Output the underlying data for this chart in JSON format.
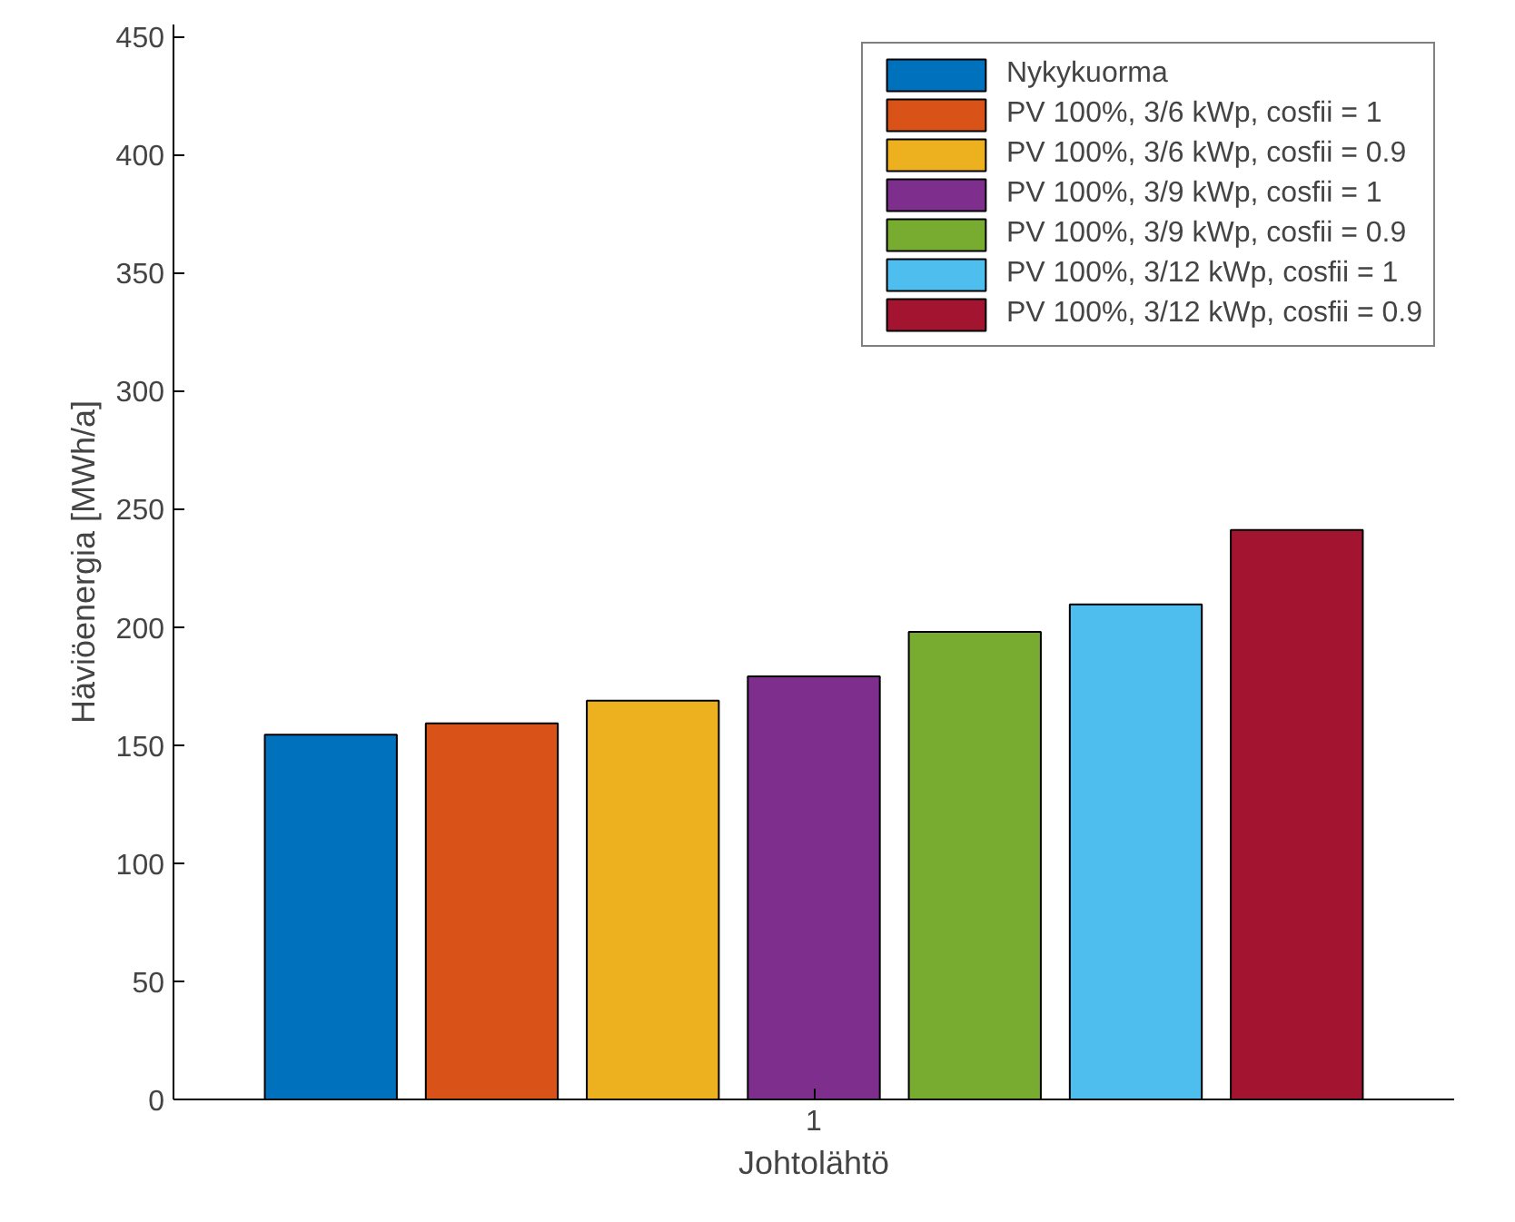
{
  "chart_data": {
    "type": "bar",
    "categories": [
      "1"
    ],
    "xlabel": "Johtolähtö",
    "ylabel": "Häviöenergia [MWh/a]",
    "ylim": [
      0,
      455
    ],
    "yticks": [
      0,
      50,
      100,
      150,
      200,
      250,
      300,
      350,
      400,
      450
    ],
    "grid": false,
    "legend": "top right",
    "series": [
      {
        "name": "Nykykuorma",
        "color": "#0072bd",
        "values": [
          154.4
        ]
      },
      {
        "name": "PV 100%, 3/6 kWp, cosfii = 1",
        "color": "#d95319",
        "values": [
          159.2
        ]
      },
      {
        "name": "PV 100%, 3/6 kWp, cosfii = 0.9",
        "color": "#edb120",
        "values": [
          168.8
        ]
      },
      {
        "name": "PV 100%, 3/9 kWp, cosfii = 1",
        "color": "#7e2f8e",
        "values": [
          179.1
        ]
      },
      {
        "name": "PV 100%, 3/9 kWp, cosfii = 0.9",
        "color": "#77ac30",
        "values": [
          197.9
        ]
      },
      {
        "name": "PV 100%, 3/12 kWp, cosfii = 1",
        "color": "#4dbeee",
        "values": [
          209.5
        ]
      },
      {
        "name": "PV 100%, 3/12 kWp, cosfii = 0.9",
        "color": "#a2142f",
        "values": [
          241.0
        ]
      }
    ]
  }
}
